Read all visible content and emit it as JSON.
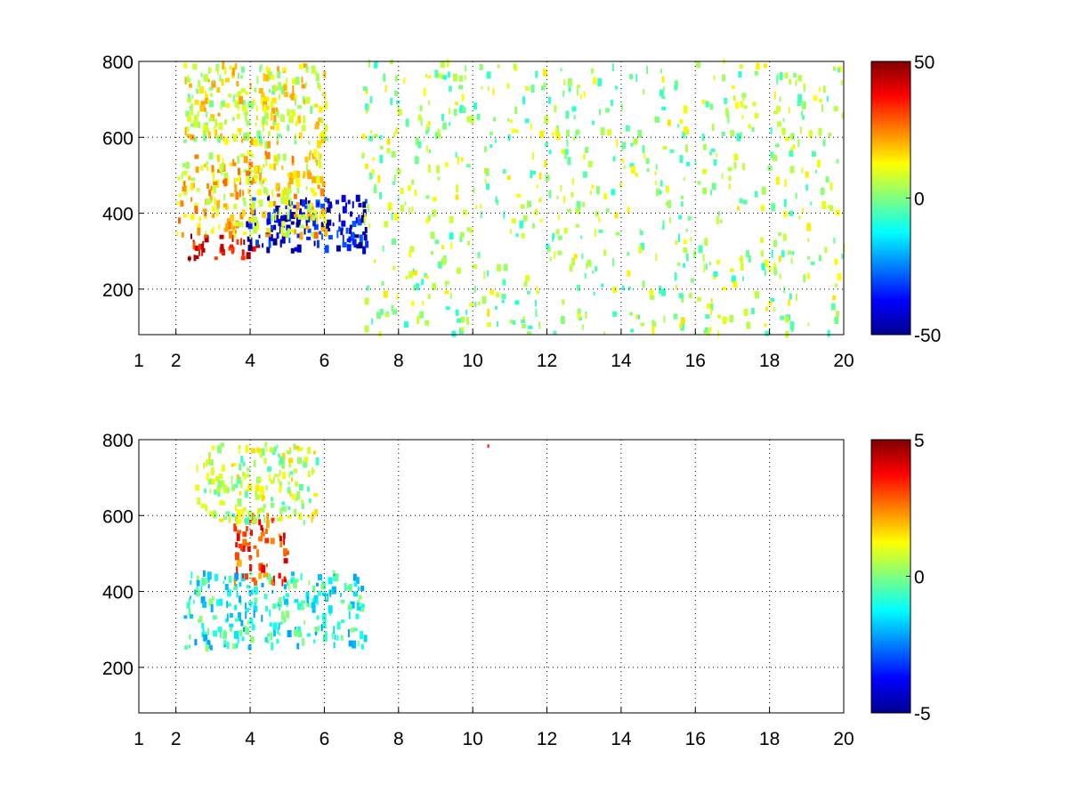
{
  "chart_data": [
    {
      "type": "heatmap",
      "x_ticks": [
        1,
        2,
        4,
        6,
        8,
        10,
        12,
        14,
        16,
        18,
        20
      ],
      "y_ticks": [
        200,
        400,
        600,
        800
      ],
      "xlim": [
        1,
        20
      ],
      "ylim": [
        80,
        800
      ],
      "grid": true,
      "colorbar": {
        "min": -50,
        "max": 50,
        "ticks": [
          50,
          0,
          -50
        ],
        "colormap": "jet"
      },
      "features": [
        {
          "desc": "dense positive band (red) along lower edge",
          "x": [
            2.2,
            4.2
          ],
          "y": [
            280,
            340
          ],
          "value": 40
        },
        {
          "desc": "dense negative band (blue) along lower edge",
          "x": [
            3.8,
            7.1
          ],
          "y": [
            300,
            440
          ],
          "value": -40
        },
        {
          "desc": "mixed positive region",
          "x": [
            2.0,
            6.0
          ],
          "y": [
            340,
            560
          ],
          "value": 15
        },
        {
          "desc": "positive cluster upper",
          "x": [
            2.2,
            6.0
          ],
          "y": [
            580,
            790
          ],
          "value": 10
        },
        {
          "desc": "sparse near-zero speckle",
          "x": [
            7.0,
            20.0
          ],
          "y": [
            80,
            800
          ],
          "value": 3
        }
      ]
    },
    {
      "type": "heatmap",
      "x_ticks": [
        1,
        2,
        4,
        6,
        8,
        10,
        12,
        14,
        16,
        18,
        20
      ],
      "y_ticks": [
        200,
        400,
        600,
        800
      ],
      "xlim": [
        1,
        20
      ],
      "ylim": [
        80,
        800
      ],
      "grid": true,
      "colorbar": {
        "min": -5,
        "max": 5,
        "ticks": [
          5,
          0,
          -5
        ],
        "colormap": "jet"
      },
      "features": [
        {
          "desc": "mixed speckle lower band",
          "x": [
            2.2,
            7.1
          ],
          "y": [
            250,
            450
          ],
          "value": -1
        },
        {
          "desc": "positive streaks",
          "x": [
            3.5,
            5.0
          ],
          "y": [
            420,
            600
          ],
          "value": 3
        },
        {
          "desc": "upper cluster",
          "x": [
            2.5,
            5.8
          ],
          "y": [
            580,
            790
          ],
          "value": 0.5
        },
        {
          "desc": "isolated point",
          "x": [
            10.3,
            10.4
          ],
          "y": [
            770,
            785
          ],
          "value": 3
        }
      ]
    }
  ]
}
